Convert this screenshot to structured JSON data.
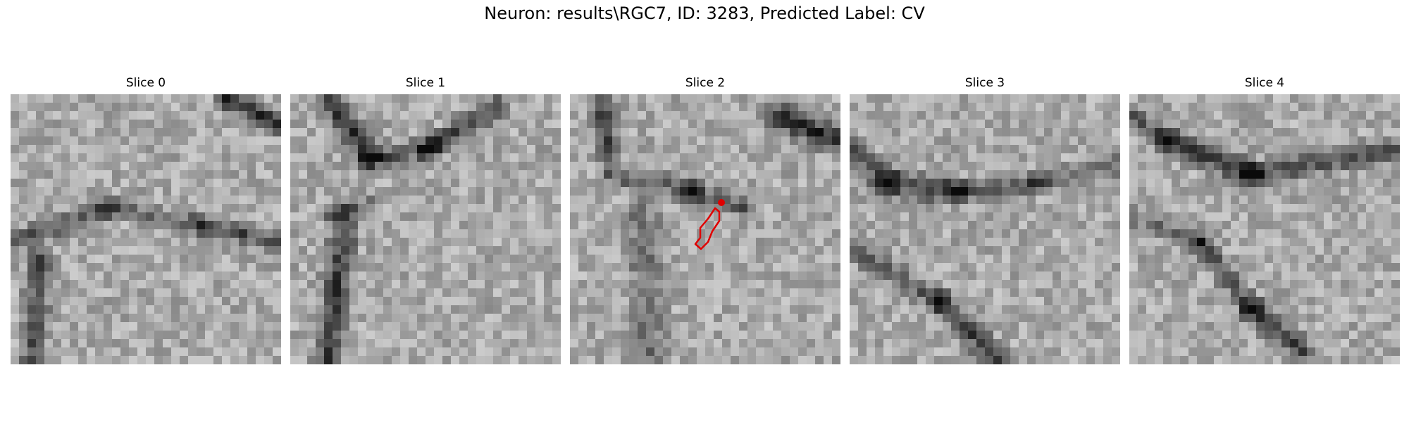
{
  "figure": {
    "title": "Neuron: results\\RGC7, ID: 3283, Predicted Label: CV"
  },
  "panels": [
    {
      "title": "Slice 0",
      "image": "grayscale-em-patch"
    },
    {
      "title": "Slice 1",
      "image": "grayscale-em-patch"
    },
    {
      "title": "Slice 2",
      "image": "grayscale-em-patch",
      "annotation": {
        "type": "contour",
        "color": "#ff0000"
      }
    },
    {
      "title": "Slice 3",
      "image": "grayscale-em-patch"
    },
    {
      "title": "Slice 4",
      "image": "grayscale-em-patch"
    }
  ]
}
